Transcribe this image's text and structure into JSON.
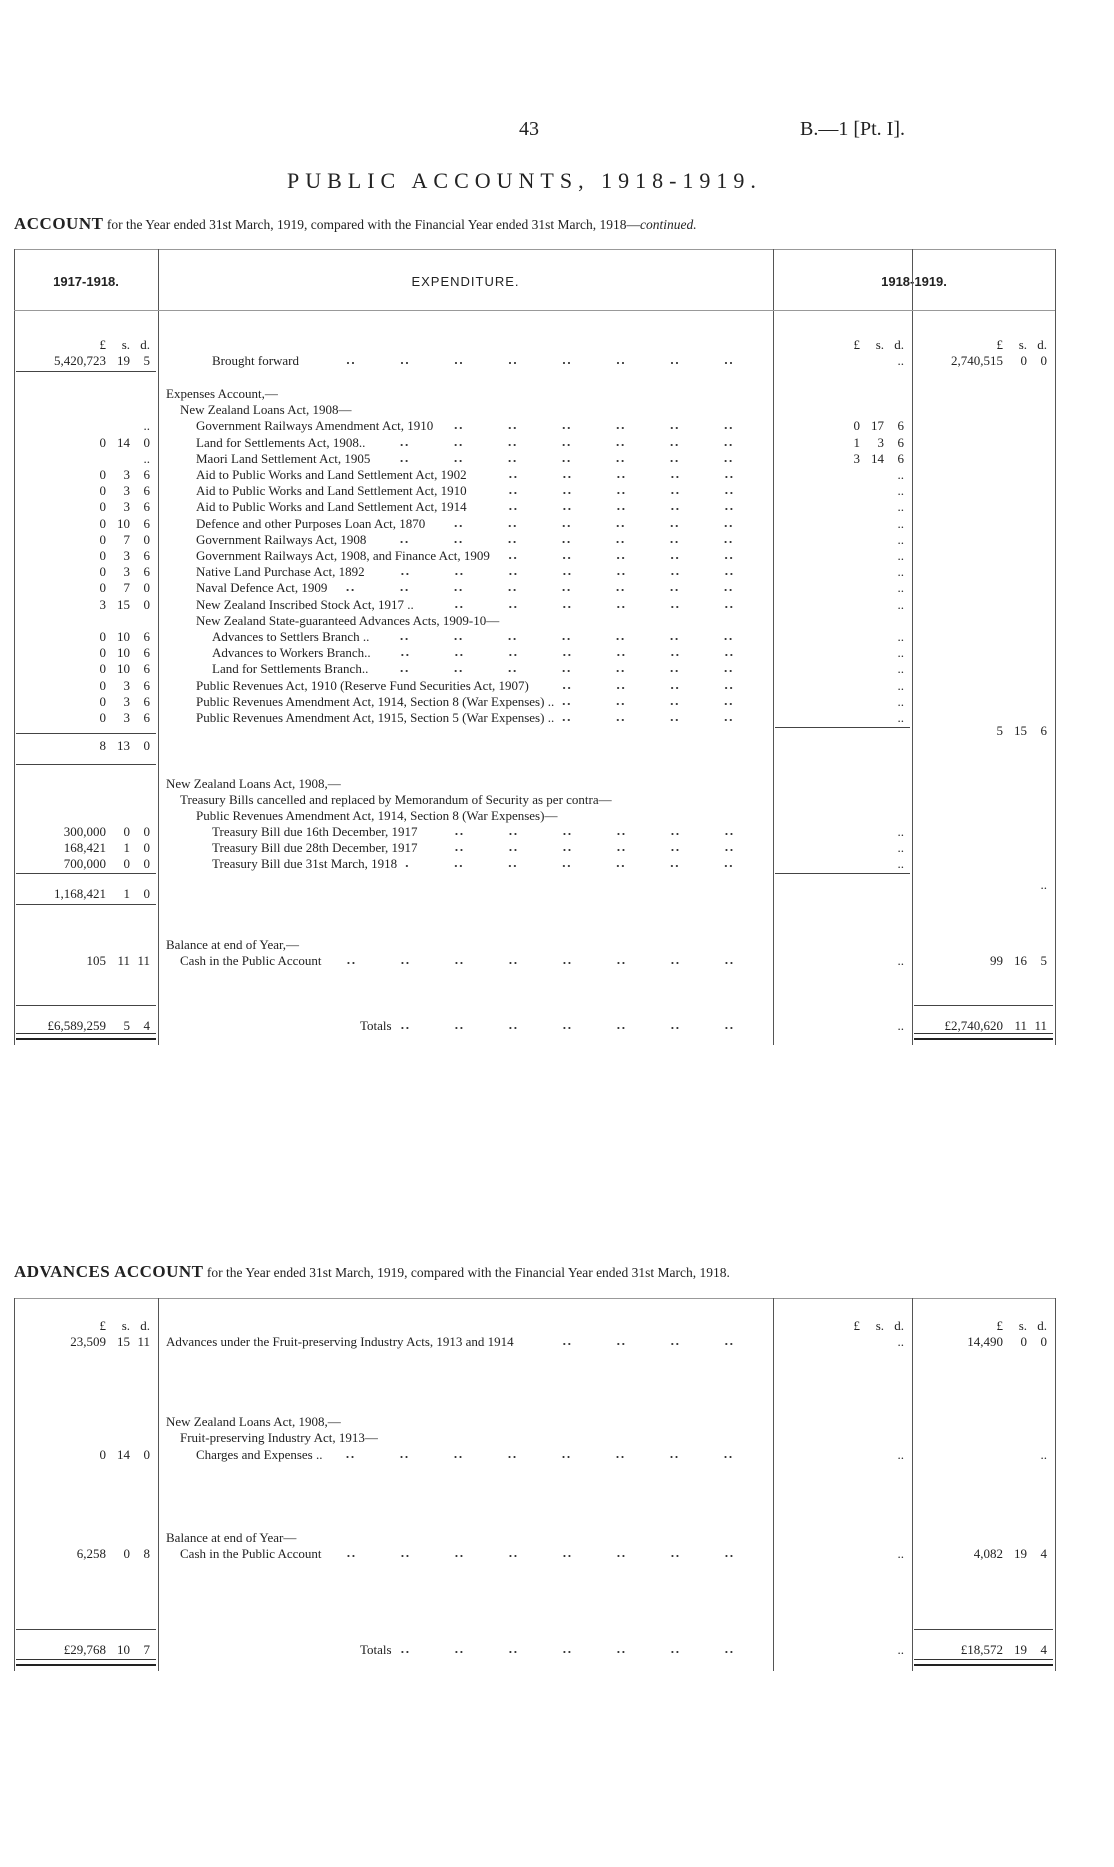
{
  "header": {
    "page_number": "43",
    "reference": "B.—1 [Pt. I]."
  },
  "title": "PUBLIC ACCOUNTS, 1918-1919.",
  "account": {
    "caption_bold": "ACCOUNT",
    "caption_rest": "for the Year ended 31st March, 1919, compared with the Financial Year ended 31st March, 1918—",
    "caption_italic": "continued.",
    "col_headers": {
      "prev": "1917-1918.",
      "desc": "EXPENDITURE.",
      "curr": "1918-1919."
    },
    "units": {
      "pound": "£",
      "s": "s.",
      "d": "d."
    },
    "rows": [
      {
        "desc": "Brought forward",
        "indent": 3,
        "leader": true,
        "c1": [
          "5,420,723",
          "19",
          "5"
        ],
        "c3": "..",
        "c4": [
          "2,740,515",
          "0",
          "0"
        ]
      },
      {
        "desc": "Expenses Account,—",
        "indent": 0
      },
      {
        "desc": "New Zealand Loans Act, 1908—",
        "indent": 1
      },
      {
        "desc": "Government Railways Amendment Act, 1910",
        "indent": 2,
        "leader": true,
        "c1": "..",
        "c3": [
          "0",
          "17",
          "6"
        ]
      },
      {
        "desc": "Land for Settlements Act, 1908..",
        "indent": 2,
        "leader": true,
        "c1": [
          "0",
          "14",
          "0"
        ],
        "c3": [
          "1",
          "3",
          "6"
        ]
      },
      {
        "desc": "Maori Land Settlement Act, 1905",
        "indent": 2,
        "leader": true,
        "c1": "..",
        "c3": [
          "3",
          "14",
          "6"
        ]
      },
      {
        "desc": "Aid to Public Works and Land Settlement Act, 1902",
        "indent": 2,
        "leader": true,
        "c1": [
          "0",
          "3",
          "6"
        ],
        "c3": ".."
      },
      {
        "desc": "Aid to Public Works and Land Settlement Act, 1910",
        "indent": 2,
        "leader": true,
        "c1": [
          "0",
          "3",
          "6"
        ],
        "c3": ".."
      },
      {
        "desc": "Aid to Public Works and Land Settlement Act, 1914",
        "indent": 2,
        "leader": true,
        "c1": [
          "0",
          "3",
          "6"
        ],
        "c3": ".."
      },
      {
        "desc": "Defence and other Purposes Loan Act, 1870",
        "indent": 2,
        "leader": true,
        "c1": [
          "0",
          "10",
          "6"
        ],
        "c3": ".."
      },
      {
        "desc": "Government Railways Act, 1908",
        "indent": 2,
        "leader": true,
        "c1": [
          "0",
          "7",
          "0"
        ],
        "c3": ".."
      },
      {
        "desc": "Government Railways Act, 1908, and Finance Act, 1909",
        "indent": 2,
        "leader": true,
        "c1": [
          "0",
          "3",
          "6"
        ],
        "c3": ".."
      },
      {
        "desc": "Native Land Purchase Act, 1892",
        "indent": 2,
        "leader": true,
        "c1": [
          "0",
          "3",
          "6"
        ],
        "c3": ".."
      },
      {
        "desc": "Naval Defence Act, 1909",
        "indent": 2,
        "leader": true,
        "c1": [
          "0",
          "7",
          "0"
        ],
        "c3": ".."
      },
      {
        "desc": "New Zealand Inscribed Stock Act, 1917 ..",
        "indent": 2,
        "leader": true,
        "c1": [
          "3",
          "15",
          "0"
        ],
        "c3": ".."
      },
      {
        "desc": "New Zealand State-guaranteed Advances Acts, 1909-10—",
        "indent": 2
      },
      {
        "desc": "Advances to Settlers Branch ..",
        "indent": 3,
        "leader": true,
        "c1": [
          "0",
          "10",
          "6"
        ],
        "c3": ".."
      },
      {
        "desc": "Advances to Workers Branch..",
        "indent": 3,
        "leader": true,
        "c1": [
          "0",
          "10",
          "6"
        ],
        "c3": ".."
      },
      {
        "desc": "Land for Settlements Branch..",
        "indent": 3,
        "leader": true,
        "c1": [
          "0",
          "10",
          "6"
        ],
        "c3": ".."
      },
      {
        "desc": "Public Revenues Act, 1910 (Reserve Fund Securities Act, 1907)",
        "indent": 2,
        "leader": true,
        "c1": [
          "0",
          "3",
          "6"
        ],
        "c3": ".."
      },
      {
        "desc": "Public Revenues Amendment Act, 1914, Section 8 (War Expenses) ..",
        "indent": 2,
        "leader": true,
        "c1": [
          "0",
          "3",
          "6"
        ],
        "c3": ".."
      },
      {
        "desc": "Public Revenues Amendment Act, 1915, Section 5 (War Expenses) ..",
        "indent": 2,
        "leader": true,
        "c1": [
          "0",
          "3",
          "6"
        ],
        "c3": ".."
      },
      {
        "desc": "",
        "c4": [
          "5",
          "15",
          "6"
        ]
      },
      {
        "desc": "",
        "c1": [
          "8",
          "13",
          "0"
        ]
      },
      {
        "desc": "New Zealand Loans Act, 1908,—",
        "indent": 0
      },
      {
        "desc": "Treasury Bills cancelled and replaced by Memorandum of Security as per contra—",
        "indent": 1
      },
      {
        "desc": "Public Revenues Amendment Act, 1914, Section 8 (War Expenses)—",
        "indent": 2
      },
      {
        "desc": "Treasury Bill due 16th December, 1917",
        "indent": 3,
        "leader": true,
        "c1": [
          "300,000",
          "0",
          "0"
        ],
        "c3": ".."
      },
      {
        "desc": "Treasury Bill due 28th December, 1917",
        "indent": 3,
        "leader": true,
        "c1": [
          "168,421",
          "1",
          "0"
        ],
        "c3": ".."
      },
      {
        "desc": "Treasury Bill due 31st March, 1918",
        "indent": 3,
        "leader": true,
        "c1": [
          "700,000",
          "0",
          "0"
        ],
        "c3": ".."
      },
      {
        "desc": "",
        "c4": ".."
      },
      {
        "desc": "",
        "c1": [
          "1,168,421",
          "1",
          "0"
        ]
      },
      {
        "desc": "Balance at end of Year,—",
        "indent": 0
      },
      {
        "desc": "Cash in the Public Account",
        "indent": 1,
        "leader": true,
        "c1": [
          "105",
          "11",
          "11"
        ],
        "c3": "..",
        "c4": [
          "99",
          "16",
          "5"
        ]
      },
      {
        "desc": "Totals",
        "indent": 5,
        "leader": true,
        "c1": [
          "£6,589,259",
          "5",
          "4"
        ],
        "c3": "..",
        "c4": [
          "£2,740,620",
          "11",
          "11"
        ]
      }
    ]
  },
  "advances": {
    "caption_bold": "ADVANCES ACCOUNT",
    "caption_rest": "for the Year ended 31st March, 1919, compared with the Financial Year ended 31st March, 1918.",
    "units": {
      "pound": "£",
      "s": "s.",
      "d": "d."
    },
    "rows": [
      {
        "desc": "Advances under the Fruit-preserving Industry Acts, 1913 and 1914",
        "indent": 0,
        "leader": true,
        "c1": [
          "23,509",
          "15",
          "11"
        ],
        "c3": "..",
        "c4": [
          "14,490",
          "0",
          "0"
        ]
      },
      {
        "desc": "New Zealand Loans Act, 1908,—",
        "indent": 0
      },
      {
        "desc": "Fruit-preserving Industry Act, 1913—",
        "indent": 1
      },
      {
        "desc": "Charges and Expenses ..",
        "indent": 2,
        "leader": true,
        "c1": [
          "0",
          "14",
          "0"
        ],
        "c3": "..",
        "c4": ".."
      },
      {
        "desc": "Balance at end of Year—",
        "indent": 0
      },
      {
        "desc": "Cash in the Public Account",
        "indent": 1,
        "leader": true,
        "c1": [
          "6,258",
          "0",
          "8"
        ],
        "c3": "..",
        "c4": [
          "4,082",
          "19",
          "4"
        ]
      },
      {
        "desc": "Totals",
        "indent": 5,
        "leader": true,
        "c1": [
          "£29,768",
          "10",
          "7"
        ],
        "c3": "..",
        "c4": [
          "£18,572",
          "19",
          "4"
        ]
      }
    ]
  }
}
